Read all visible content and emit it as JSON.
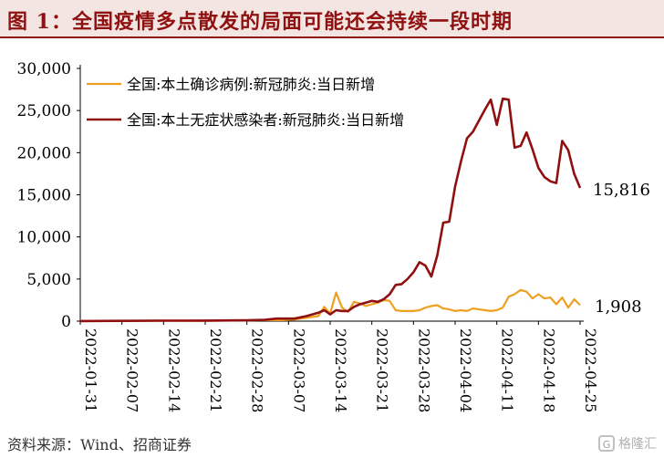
{
  "title": "图 1：全国疫情多点散发的局面可能还会持续一段时期",
  "source": "资料来源：Wind、招商证券",
  "watermark": {
    "text": "格隆汇",
    "logo_letter": "G",
    "icon": "gelonghui-logo-icon"
  },
  "colors": {
    "confirmed": "#f0a020",
    "asymptomatic": "#8f1010",
    "accent": "#8f1010",
    "header_bg": "#f3e6e2"
  },
  "chart_data": {
    "type": "line",
    "x_start": "2022-01-31",
    "x_end": "2022-04-25",
    "x_ticks": [
      "2022-01-31",
      "2022-02-07",
      "2022-02-14",
      "2022-02-21",
      "2022-02-28",
      "2022-03-07",
      "2022-03-14",
      "2022-03-21",
      "2022-03-28",
      "2022-04-04",
      "2022-04-11",
      "2022-04-18",
      "2022-04-25"
    ],
    "y_ticks": [
      "0",
      "5,000",
      "10,000",
      "15,000",
      "20,000",
      "25,000",
      "30,000"
    ],
    "ylim": [
      0,
      30000
    ],
    "legend_position": "top-left",
    "grid": false,
    "series": [
      {
        "name": "全国:本土确诊病例:新冠肺炎:当日新增",
        "end_label": "1,908",
        "points": [
          [
            "2022-01-31",
            10
          ],
          [
            "2022-02-07",
            40
          ],
          [
            "2022-02-14",
            60
          ],
          [
            "2022-02-21",
            40
          ],
          [
            "2022-02-28",
            90
          ],
          [
            "2022-03-03",
            130
          ],
          [
            "2022-03-06",
            120
          ],
          [
            "2022-03-08",
            200
          ],
          [
            "2022-03-10",
            400
          ],
          [
            "2022-03-12",
            600
          ],
          [
            "2022-03-13",
            1700
          ],
          [
            "2022-03-14",
            900
          ],
          [
            "2022-03-15",
            3400
          ],
          [
            "2022-03-16",
            1600
          ],
          [
            "2022-03-17",
            1100
          ],
          [
            "2022-03-18",
            2300
          ],
          [
            "2022-03-19",
            2100
          ],
          [
            "2022-03-20",
            1800
          ],
          [
            "2022-03-21",
            2000
          ],
          [
            "2022-03-22",
            2200
          ],
          [
            "2022-03-23",
            2500
          ],
          [
            "2022-03-24",
            2400
          ],
          [
            "2022-03-25",
            1300
          ],
          [
            "2022-03-26",
            1200
          ],
          [
            "2022-03-27",
            1200
          ],
          [
            "2022-03-28",
            1200
          ],
          [
            "2022-03-29",
            1300
          ],
          [
            "2022-03-30",
            1600
          ],
          [
            "2022-03-31",
            1800
          ],
          [
            "2022-04-01",
            1900
          ],
          [
            "2022-04-02",
            1500
          ],
          [
            "2022-04-03",
            1400
          ],
          [
            "2022-04-04",
            1200
          ],
          [
            "2022-04-05",
            1300
          ],
          [
            "2022-04-06",
            1200
          ],
          [
            "2022-04-07",
            1500
          ],
          [
            "2022-04-08",
            1400
          ],
          [
            "2022-04-09",
            1300
          ],
          [
            "2022-04-10",
            1200
          ],
          [
            "2022-04-11",
            1300
          ],
          [
            "2022-04-12",
            1600
          ],
          [
            "2022-04-13",
            2900
          ],
          [
            "2022-04-14",
            3200
          ],
          [
            "2022-04-15",
            3700
          ],
          [
            "2022-04-16",
            3500
          ],
          [
            "2022-04-17",
            2700
          ],
          [
            "2022-04-18",
            3200
          ],
          [
            "2022-04-19",
            2700
          ],
          [
            "2022-04-20",
            2800
          ],
          [
            "2022-04-21",
            2000
          ],
          [
            "2022-04-22",
            2800
          ],
          [
            "2022-04-23",
            1600
          ],
          [
            "2022-04-24",
            2600
          ],
          [
            "2022-04-25",
            1908
          ]
        ]
      },
      {
        "name": "全国:本土无症状感染者:新冠肺炎:当日新增",
        "end_label": "15,816",
        "points": [
          [
            "2022-01-31",
            10
          ],
          [
            "2022-02-07",
            30
          ],
          [
            "2022-02-14",
            50
          ],
          [
            "2022-02-21",
            60
          ],
          [
            "2022-02-28",
            100
          ],
          [
            "2022-03-03",
            150
          ],
          [
            "2022-03-05",
            300
          ],
          [
            "2022-03-08",
            300
          ],
          [
            "2022-03-10",
            600
          ],
          [
            "2022-03-12",
            1000
          ],
          [
            "2022-03-13",
            1300
          ],
          [
            "2022-03-14",
            800
          ],
          [
            "2022-03-15",
            1300
          ],
          [
            "2022-03-16",
            1200
          ],
          [
            "2022-03-17",
            1200
          ],
          [
            "2022-03-18",
            1700
          ],
          [
            "2022-03-19",
            2000
          ],
          [
            "2022-03-20",
            2200
          ],
          [
            "2022-03-21",
            2400
          ],
          [
            "2022-03-22",
            2300
          ],
          [
            "2022-03-23",
            2600
          ],
          [
            "2022-03-24",
            3200
          ],
          [
            "2022-03-25",
            4300
          ],
          [
            "2022-03-26",
            4400
          ],
          [
            "2022-03-27",
            5000
          ],
          [
            "2022-03-28",
            5800
          ],
          [
            "2022-03-29",
            7000
          ],
          [
            "2022-03-30",
            6600
          ],
          [
            "2022-03-31",
            5300
          ],
          [
            "2022-04-01",
            7800
          ],
          [
            "2022-04-02",
            11700
          ],
          [
            "2022-04-03",
            11800
          ],
          [
            "2022-04-04",
            16000
          ],
          [
            "2022-04-05",
            19000
          ],
          [
            "2022-04-06",
            21700
          ],
          [
            "2022-04-07",
            22500
          ],
          [
            "2022-04-08",
            23800
          ],
          [
            "2022-04-09",
            25100
          ],
          [
            "2022-04-10",
            26300
          ],
          [
            "2022-04-11",
            23300
          ],
          [
            "2022-04-12",
            26400
          ],
          [
            "2022-04-13",
            26300
          ],
          [
            "2022-04-14",
            20600
          ],
          [
            "2022-04-15",
            20800
          ],
          [
            "2022-04-16",
            22400
          ],
          [
            "2022-04-17",
            20400
          ],
          [
            "2022-04-18",
            18200
          ],
          [
            "2022-04-19",
            17100
          ],
          [
            "2022-04-20",
            16600
          ],
          [
            "2022-04-21",
            16400
          ],
          [
            "2022-04-22",
            21400
          ],
          [
            "2022-04-23",
            20300
          ],
          [
            "2022-04-24",
            17500
          ],
          [
            "2022-04-25",
            15816
          ]
        ]
      }
    ]
  }
}
